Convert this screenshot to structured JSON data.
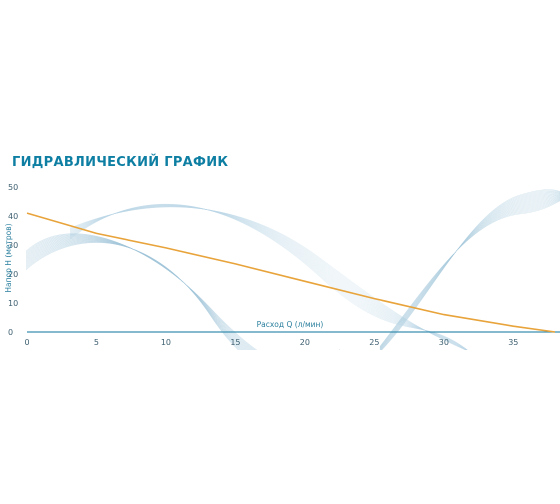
{
  "chart_data": {
    "type": "line",
    "title": "ГИДРАВЛИЧЕСКИЙ ГРАФИК",
    "xlabel": "Расход Q (л/мин)",
    "ylabel": "Напор H (метров)",
    "xlim": [
      0,
      38
    ],
    "ylim": [
      0,
      50
    ],
    "x_ticks": [
      0,
      5,
      10,
      15,
      20,
      25,
      30,
      35
    ],
    "y_ticks": [
      0,
      10,
      20,
      30,
      40,
      50
    ],
    "grid": false,
    "series": [
      {
        "color": "#e8a33a",
        "x": [
          0,
          5,
          10,
          15,
          20,
          25,
          30,
          35,
          38
        ],
        "y": [
          41,
          34,
          29,
          23.5,
          17.5,
          11.5,
          6,
          2,
          0
        ]
      }
    ]
  }
}
